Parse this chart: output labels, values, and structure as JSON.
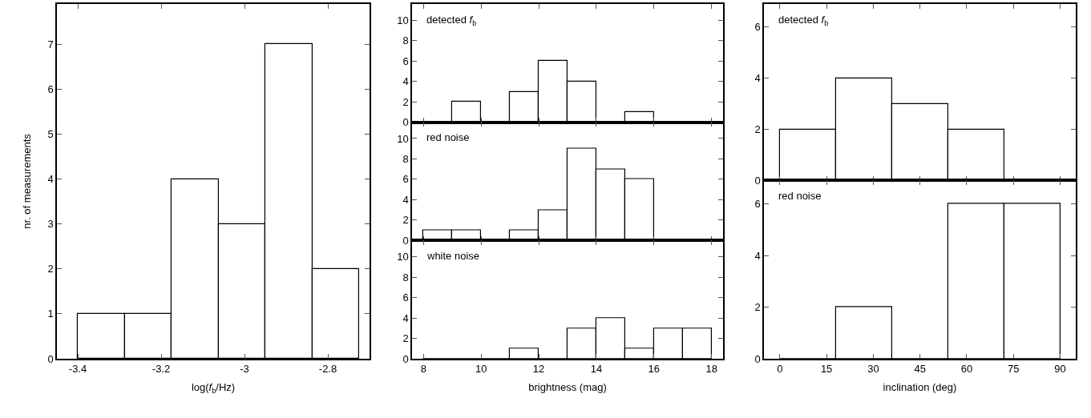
{
  "chart_data": [
    {
      "type": "histogram",
      "xlabel": "log(f$_{b}$/Hz)",
      "ylabel": "nr. of measurements",
      "bins": [
        -3.4,
        -3.2875,
        -3.175,
        -3.0625,
        -2.95,
        -2.8375,
        -2.725
      ],
      "values": [
        1,
        1,
        4,
        3,
        7,
        2
      ],
      "color": "#000000",
      "xlim": [
        -3.45,
        -2.7
      ],
      "xticks": [
        -3.4,
        -3.2,
        -3,
        -2.8
      ],
      "ylim": [
        0,
        7.9
      ],
      "yticks": [
        0,
        1,
        2,
        3,
        4,
        5,
        6,
        7
      ]
    },
    {
      "type": "histogram",
      "annotations": [
        "detected f$_{b}$"
      ],
      "bins": [
        8,
        9,
        10,
        11,
        12,
        13,
        14,
        15,
        16,
        17,
        18
      ],
      "values": [
        0,
        2,
        0,
        3,
        6,
        4,
        0,
        1,
        0,
        0
      ],
      "color": "#000000",
      "xlim": [
        7.6,
        18.4
      ],
      "xticks": [
        8,
        10,
        12,
        14,
        16,
        18
      ],
      "ylim": [
        0,
        11.6
      ],
      "yticks": [
        0,
        2,
        4,
        6,
        8,
        10
      ],
      "tick_labels": "y"
    },
    {
      "type": "histogram",
      "annotations": [
        "red noise"
      ],
      "bins": [
        8,
        9,
        10,
        11,
        12,
        13,
        14,
        15,
        16,
        17,
        18
      ],
      "values": [
        1,
        1,
        0,
        1,
        3,
        9,
        7,
        6,
        0,
        0
      ],
      "color": "#000000",
      "xlim": [
        7.6,
        18.4
      ],
      "xticks": [
        8,
        10,
        12,
        14,
        16,
        18
      ],
      "ylim": [
        0,
        11.6
      ],
      "yticks": [
        0,
        2,
        4,
        6,
        8,
        10
      ],
      "tick_labels": "y"
    },
    {
      "type": "histogram",
      "annotations": [
        "white noise"
      ],
      "xlabel": "brightness (mag)",
      "bins": [
        8,
        9,
        10,
        11,
        12,
        13,
        14,
        15,
        16,
        17,
        18
      ],
      "values": [
        0,
        0,
        0,
        1,
        0,
        3,
        4,
        1,
        3,
        3
      ],
      "color": "#000000",
      "xlim": [
        7.6,
        18.4
      ],
      "xticks": [
        8,
        10,
        12,
        14,
        16,
        18
      ],
      "ylim": [
        0,
        11.6
      ],
      "yticks": [
        0,
        2,
        4,
        6,
        8,
        10
      ]
    },
    {
      "type": "histogram",
      "annotations": [
        "detected f$_{b}$"
      ],
      "bins": [
        0,
        18,
        36,
        54,
        72,
        90
      ],
      "values": [
        2,
        4,
        3,
        2,
        0
      ],
      "color": "#000000",
      "xlim": [
        -5.1,
        95
      ],
      "xticks": [
        0,
        15,
        30,
        45,
        60,
        75,
        90
      ],
      "ylim": [
        0,
        6.9
      ],
      "yticks": [
        0,
        2,
        4,
        6
      ],
      "tick_labels": "y"
    },
    {
      "type": "histogram",
      "annotations": [
        "red noise"
      ],
      "xlabel": "inclination (deg)",
      "bins": [
        0,
        18,
        36,
        54,
        72,
        90
      ],
      "values": [
        0,
        2,
        0,
        6,
        6
      ],
      "color": "#000000",
      "xlim": [
        -5.1,
        95
      ],
      "xticks": [
        0,
        15,
        30,
        45,
        60,
        75,
        90
      ],
      "ylim": [
        0,
        6.9
      ],
      "yticks": [
        0,
        2,
        4,
        6
      ]
    }
  ]
}
